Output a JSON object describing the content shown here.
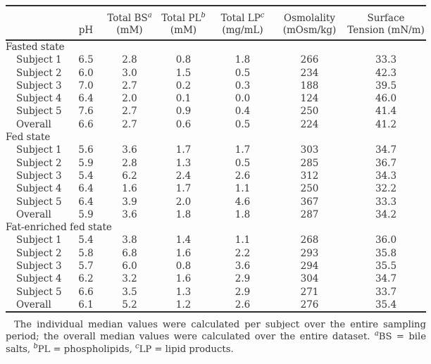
{
  "page": {
    "background": "#fdfdfd",
    "text_color": "#363636",
    "rule_color": "#2b2b2b"
  },
  "table": {
    "columns": [
      {
        "top": "",
        "sup": "",
        "bottom": "pH"
      },
      {
        "top": "Total BS",
        "sup": "a",
        "bottom": "(mM)"
      },
      {
        "top": "Total PL",
        "sup": "b",
        "bottom": "(mM)"
      },
      {
        "top": "Total LP",
        "sup": "c",
        "bottom": "(mg/mL)"
      },
      {
        "top": "Osmolality",
        "sup": "",
        "bottom": "(mOsm/kg)"
      },
      {
        "top": "Surface",
        "sup": "",
        "bottom": "Tension (mN/m)"
      }
    ],
    "groups": [
      {
        "name": "Fasted state",
        "rows": [
          {
            "label": "Subject 1",
            "values": [
              "6.5",
              "2.8",
              "0.8",
              "1.8",
              "266",
              "33.3"
            ]
          },
          {
            "label": "Subject 2",
            "values": [
              "6.0",
              "3.0",
              "1.5",
              "0.5",
              "234",
              "42.3"
            ]
          },
          {
            "label": "Subject 3",
            "values": [
              "7.0",
              "2.7",
              "0.2",
              "0.3",
              "188",
              "39.5"
            ]
          },
          {
            "label": "Subject 4",
            "values": [
              "6.4",
              "2.0",
              "0.1",
              "0.0",
              "124",
              "46.0"
            ]
          },
          {
            "label": "Subject 5",
            "values": [
              "7.6",
              "2.7",
              "0.9",
              "0.4",
              "250",
              "41.4"
            ]
          },
          {
            "label": "Overall",
            "values": [
              "6.6",
              "2.7",
              "0.6",
              "0.5",
              "224",
              "41.2"
            ]
          }
        ]
      },
      {
        "name": "Fed state",
        "rows": [
          {
            "label": "Subject 1",
            "values": [
              "5.6",
              "3.6",
              "1.7",
              "1.7",
              "303",
              "34.7"
            ]
          },
          {
            "label": "Subject 2",
            "values": [
              "5.9",
              "2.8",
              "1.3",
              "0.5",
              "285",
              "36.7"
            ]
          },
          {
            "label": "Subject 3",
            "values": [
              "5.4",
              "6.2",
              "2.4",
              "2.6",
              "312",
              "34.3"
            ]
          },
          {
            "label": "Subject 4",
            "values": [
              "6.4",
              "1.6",
              "1.7",
              "1.1",
              "250",
              "32.2"
            ]
          },
          {
            "label": "Subject 5",
            "values": [
              "6.4",
              "3.9",
              "2.0",
              "4.6",
              "367",
              "33.3"
            ]
          },
          {
            "label": "Overall",
            "values": [
              "5.9",
              "3.6",
              "1.8",
              "1.8",
              "287",
              "34.2"
            ]
          }
        ]
      },
      {
        "name": "Fat-enriched fed state",
        "rows": [
          {
            "label": "Subject 1",
            "values": [
              "5.4",
              "3.8",
              "1.4",
              "1.1",
              "268",
              "36.0"
            ]
          },
          {
            "label": "Subject 2",
            "values": [
              "5.8",
              "6.8",
              "1.6",
              "2.2",
              "293",
              "35.8"
            ]
          },
          {
            "label": "Subject 3",
            "values": [
              "5.7",
              "6.0",
              "0.8",
              "3.6",
              "294",
              "35.5"
            ]
          },
          {
            "label": "Subject 4",
            "values": [
              "6.2",
              "3.2",
              "1.6",
              "2.9",
              "304",
              "34.7"
            ]
          },
          {
            "label": "Subject 5",
            "values": [
              "6.6",
              "3.5",
              "1.3",
              "2.9",
              "271",
              "33.7"
            ]
          },
          {
            "label": "Overall",
            "values": [
              "6.1",
              "5.2",
              "1.2",
              "2.6",
              "276",
              "35.4"
            ]
          }
        ]
      }
    ]
  },
  "footnote": {
    "main": "The individual median values were calculated per subject over the entire sampling period; the overall median values were calculated over the entire dataset. ",
    "sup_a": "a",
    "def_a": "BS = bile salts, ",
    "sup_b": "b",
    "def_b": "PL = phospholipids, ",
    "sup_c": "c",
    "def_c": "LP = lipid products."
  }
}
